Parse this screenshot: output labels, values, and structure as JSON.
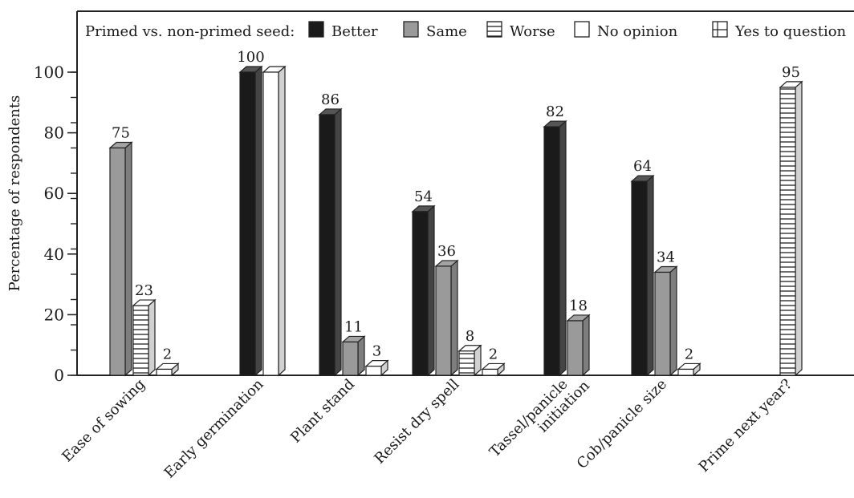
{
  "chart_data": {
    "type": "bar",
    "title": "",
    "xlabel": "",
    "ylabel": "Percentage of respondents",
    "ylim": [
      0,
      100
    ],
    "yticks": [
      "0",
      "20",
      "40",
      "60",
      "80",
      "100"
    ],
    "legend": {
      "placement": "top",
      "title": "Primed vs. non-primed seed:",
      "entries": [
        {
          "name": "Better",
          "color": "#1a1a1a",
          "pattern": "solid"
        },
        {
          "name": "Same",
          "color": "#9a9a9a",
          "pattern": "solid"
        },
        {
          "name": "Worse",
          "color": "#d2d2d2",
          "pattern": "striped"
        },
        {
          "name": "No opinion",
          "color": "#ffffff",
          "pattern": "solid"
        },
        {
          "name": "Yes to question",
          "color": "#d2d2d2",
          "pattern": "striped"
        }
      ]
    },
    "categories": [
      {
        "label": "Ease of sowing",
        "bars": [
          {
            "series": "Same",
            "value": 75,
            "label": "75"
          },
          {
            "series": "Worse",
            "value": 23,
            "label": "23"
          },
          {
            "series": "No opinion",
            "value": 2,
            "label": "2"
          }
        ]
      },
      {
        "label": "Early germination",
        "bars": [
          {
            "series": "Better",
            "value": 100,
            "label": "100"
          },
          {
            "series": "No opinion",
            "value": 100,
            "label": ""
          }
        ]
      },
      {
        "label": "Plant stand",
        "bars": [
          {
            "series": "Better",
            "value": 86,
            "label": "86"
          },
          {
            "series": "Same",
            "value": 11,
            "label": "11"
          },
          {
            "series": "No opinion",
            "value": 3,
            "label": "3"
          }
        ]
      },
      {
        "label": "Resist dry spell",
        "bars": [
          {
            "series": "Better",
            "value": 54,
            "label": "54"
          },
          {
            "series": "Same",
            "value": 36,
            "label": "36"
          },
          {
            "series": "Worse",
            "value": 8,
            "label": "8"
          },
          {
            "series": "No opinion",
            "value": 2,
            "label": "2"
          }
        ]
      },
      {
        "label": "Tassel/panicle initiation",
        "bars": [
          {
            "series": "Better",
            "value": 82,
            "label": "82"
          },
          {
            "series": "Same",
            "value": 18,
            "label": "18"
          }
        ]
      },
      {
        "label": "Cob/panicle size",
        "bars": [
          {
            "series": "Better",
            "value": 64,
            "label": "64"
          },
          {
            "series": "Same",
            "value": 34,
            "label": "34"
          },
          {
            "series": "No opinion",
            "value": 2,
            "label": "2"
          }
        ]
      },
      {
        "label": "Prime next year?",
        "bars": [
          {
            "series": "Yes to question",
            "value": 95,
            "label": "95"
          }
        ]
      }
    ]
  }
}
